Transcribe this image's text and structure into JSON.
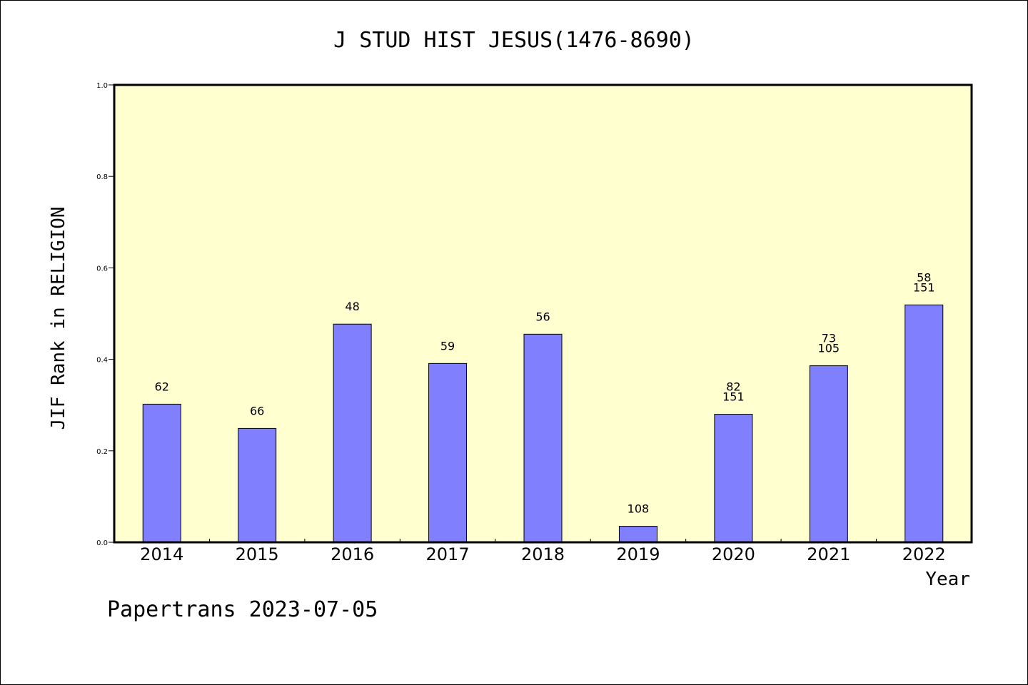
{
  "chart_data": {
    "type": "bar",
    "title": "J STUD HIST JESUS(1476-8690)",
    "xlabel": "Year",
    "ylabel": "JIF Rank in RELIGION",
    "categories": [
      "2014",
      "2015",
      "2016",
      "2017",
      "2018",
      "2019",
      "2020",
      "2021",
      "2022"
    ],
    "values": [
      0.302,
      0.249,
      0.477,
      0.391,
      0.455,
      0.035,
      0.28,
      0.386,
      0.519
    ],
    "bar_labels": [
      [
        "62"
      ],
      [
        "66"
      ],
      [
        "48"
      ],
      [
        "59"
      ],
      [
        "56"
      ],
      [
        "108"
      ],
      [
        "82",
        "151"
      ],
      [
        "73",
        "105"
      ],
      [
        "58",
        "151"
      ]
    ],
    "ylim": [
      0,
      1.0
    ],
    "yticks": [
      "0.0",
      "0.2",
      "0.4",
      "0.6",
      "0.8",
      "1.0"
    ],
    "grid": false,
    "colors": {
      "plot_background": "#ffffd0",
      "bar_fill": "#8080ff",
      "bar_stroke": "#000000"
    }
  },
  "footer": "Papertrans 2023-07-05"
}
